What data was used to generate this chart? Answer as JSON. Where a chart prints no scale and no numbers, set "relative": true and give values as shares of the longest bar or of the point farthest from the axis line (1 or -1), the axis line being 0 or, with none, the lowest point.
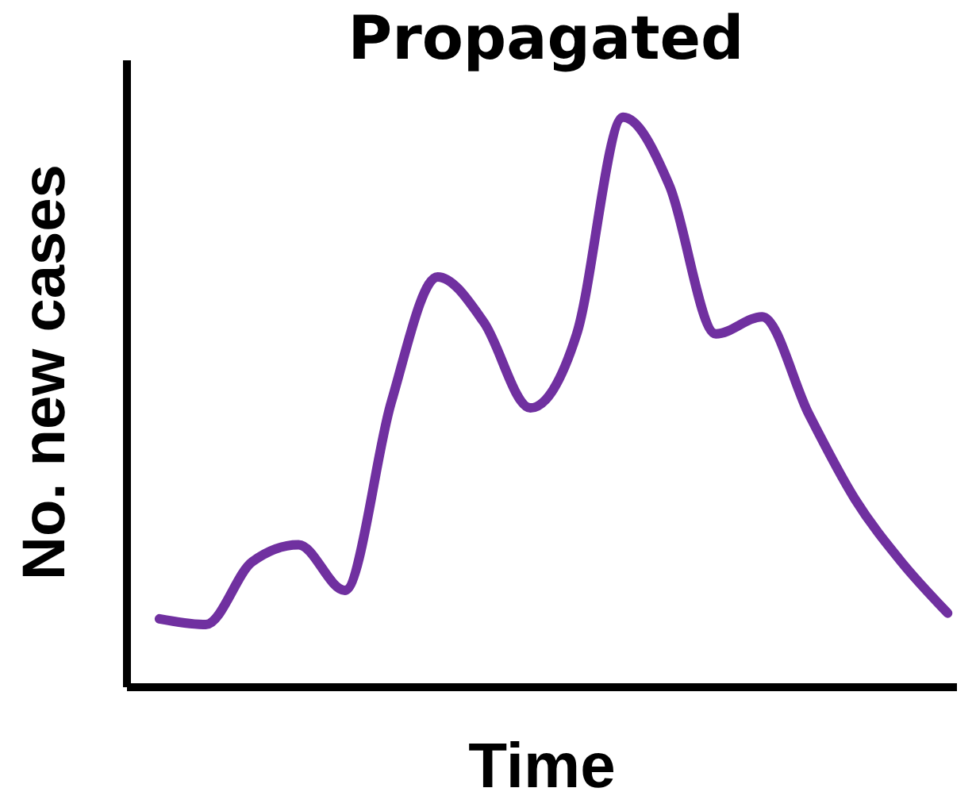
{
  "chart_data": {
    "type": "line",
    "title": "Propagated",
    "xlabel": "Time",
    "ylabel": "No. new cases",
    "relative": true,
    "grid": false,
    "legend": false,
    "marker": "none",
    "line_style": "solid",
    "categories": [
      null,
      null,
      null,
      null,
      null,
      null,
      null,
      null,
      null,
      null,
      null,
      null,
      null,
      null,
      null,
      null,
      null,
      null
    ],
    "series": [
      {
        "color": "#7030a0",
        "values": [
          0.12,
          0.11,
          0.22,
          0.25,
          0.17,
          0.5,
          0.72,
          0.64,
          0.49,
          0.62,
          1.0,
          0.88,
          0.62,
          0.65,
          0.48,
          0.33,
          0.22,
          0.13
        ]
      }
    ]
  }
}
